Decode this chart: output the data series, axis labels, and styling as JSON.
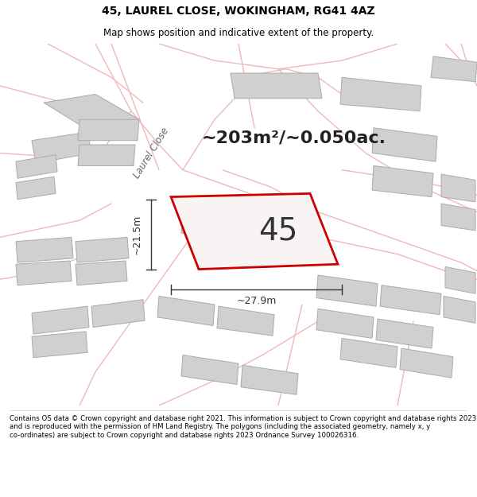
{
  "title": "45, LAUREL CLOSE, WOKINGHAM, RG41 4AZ",
  "subtitle": "Map shows position and indicative extent of the property.",
  "area_label": "~203m²/~0.050ac.",
  "number_label": "45",
  "dim_width": "~27.9m",
  "dim_height": "~21.5m",
  "footer": "Contains OS data © Crown copyright and database right 2021. This information is subject to Crown copyright and database rights 2023 and is reproduced with the permission of HM Land Registry. The polygons (including the associated geometry, namely x, y co-ordinates) are subject to Crown copyright and database rights 2023 Ordnance Survey 100026316.",
  "map_bg": "#f2f0f0",
  "road_color": "#f0b8b8",
  "building_color": "#d0d0d0",
  "building_edge": "#aaaaaa",
  "plot_edge_color": "#cc0000",
  "plot_fill": "#f8f4f4",
  "road_label": "Laurel Close",
  "title_fontsize": 10,
  "subtitle_fontsize": 8.5,
  "footer_fontsize": 6.2,
  "area_fontsize": 16,
  "num_fontsize": 28,
  "dim_fontsize": 9
}
